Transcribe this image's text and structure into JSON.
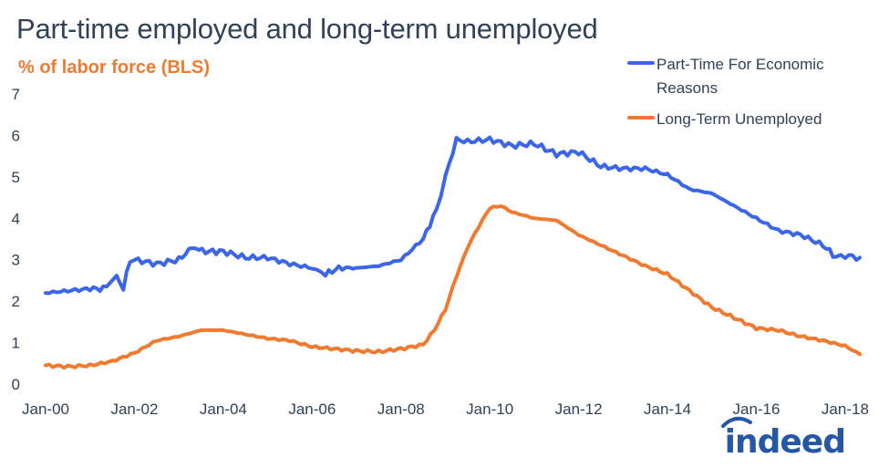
{
  "chart_data": {
    "type": "line",
    "title": "Part-time employed and long-term unemployed",
    "subtitle": "% of labor force (BLS)",
    "xlabel": "",
    "ylabel": "",
    "ylim": [
      0,
      7
    ],
    "yticks": [
      "0",
      "1",
      "2",
      "3",
      "4",
      "5",
      "6",
      "7"
    ],
    "xlim": [
      2000,
      2018.33
    ],
    "xtick_positions": [
      2000,
      2002,
      2004,
      2006,
      2008,
      2010,
      2012,
      2014,
      2016,
      2018
    ],
    "xtick_labels": [
      "Jan-00",
      "Jan-02",
      "Jan-04",
      "Jan-06",
      "Jan-08",
      "Jan-10",
      "Jan-12",
      "Jan-14",
      "Jan-16",
      "Jan-18"
    ],
    "grid": false,
    "legend_position": "top-right",
    "series": [
      {
        "name": "Part-Time  For Economic Reasons",
        "color": "#3b66ea",
        "x": [
          2000,
          2000.5,
          2001,
          2001.3,
          2001.6,
          2001.75,
          2001.9,
          2002,
          2002.5,
          2003,
          2003.3,
          2003.6,
          2004,
          2004.5,
          2005,
          2005.5,
          2006,
          2006.3,
          2006.6,
          2007,
          2007.5,
          2008,
          2008.5,
          2008.8,
          2009,
          2009.25,
          2009.5,
          2010,
          2010.5,
          2011,
          2011.5,
          2012,
          2012.5,
          2013,
          2013.5,
          2014,
          2014.5,
          2015,
          2015.5,
          2016,
          2016.5,
          2017,
          2017.5,
          2017.8,
          2018,
          2018.33
        ],
        "values": [
          2.2,
          2.25,
          2.3,
          2.3,
          2.6,
          2.3,
          3.0,
          3.0,
          2.9,
          3.0,
          3.3,
          3.2,
          3.2,
          3.05,
          3.05,
          2.9,
          2.8,
          2.65,
          2.8,
          2.8,
          2.85,
          3.0,
          3.5,
          4.2,
          5.0,
          5.9,
          5.85,
          5.9,
          5.75,
          5.8,
          5.55,
          5.6,
          5.25,
          5.2,
          5.2,
          5.05,
          4.7,
          4.6,
          4.3,
          4.0,
          3.7,
          3.6,
          3.35,
          3.05,
          3.1,
          3.05
        ]
      },
      {
        "name": "Long-Term Unemployed",
        "color": "#f07a30",
        "x": [
          2000,
          2000.5,
          2001,
          2001.5,
          2002,
          2002.5,
          2003,
          2003.5,
          2004,
          2004.5,
          2005,
          2005.5,
          2006,
          2006.5,
          2007,
          2007.5,
          2008,
          2008.5,
          2008.75,
          2009,
          2009.25,
          2009.5,
          2009.75,
          2010,
          2010.25,
          2010.5,
          2011,
          2011.5,
          2012,
          2012.5,
          2013,
          2013.5,
          2014,
          2014.5,
          2015,
          2015.5,
          2016,
          2016.5,
          2017,
          2017.5,
          2018,
          2018.33
        ],
        "values": [
          0.45,
          0.42,
          0.45,
          0.55,
          0.75,
          1.05,
          1.15,
          1.3,
          1.3,
          1.2,
          1.1,
          1.05,
          0.9,
          0.85,
          0.8,
          0.78,
          0.85,
          0.95,
          1.3,
          1.8,
          2.6,
          3.3,
          3.8,
          4.25,
          4.3,
          4.15,
          4.0,
          3.95,
          3.6,
          3.35,
          3.1,
          2.85,
          2.65,
          2.25,
          1.85,
          1.6,
          1.35,
          1.3,
          1.15,
          1.05,
          0.92,
          0.72
        ]
      }
    ]
  },
  "logo": {
    "text": "indeed"
  },
  "colors": {
    "axis_text": "#2f4258",
    "title": "#2f4258",
    "accent": "#f07a30",
    "brand": "#2557a7"
  }
}
